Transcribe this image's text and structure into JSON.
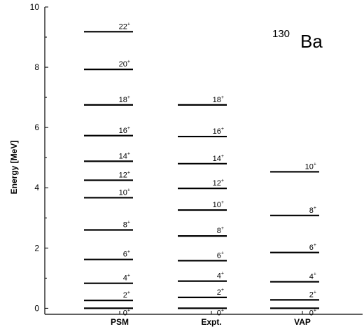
{
  "chart_data": {
    "type": "level-scheme",
    "ylabel": "Energy [MeV]",
    "ylim": [
      -0.2,
      10
    ],
    "yticks": [
      0,
      2,
      4,
      6,
      8,
      10
    ],
    "categories": [
      "PSM",
      "Expt.",
      "VAP"
    ],
    "nucleus": {
      "mass": "130",
      "symbol": "Ba"
    },
    "series": [
      {
        "name": "PSM",
        "levels": [
          {
            "spin": "0",
            "parity": "+",
            "energy": 0.0
          },
          {
            "spin": "2",
            "parity": "+",
            "energy": 0.26
          },
          {
            "spin": "4",
            "parity": "+",
            "energy": 0.83
          },
          {
            "spin": "6",
            "parity": "+",
            "energy": 1.62
          },
          {
            "spin": "8",
            "parity": "+",
            "energy": 2.6
          },
          {
            "spin": "10",
            "parity": "+",
            "energy": 3.67
          },
          {
            "spin": "12",
            "parity": "+",
            "energy": 4.25
          },
          {
            "spin": "14",
            "parity": "+",
            "energy": 4.88
          },
          {
            "spin": "16",
            "parity": "+",
            "energy": 5.73
          },
          {
            "spin": "18",
            "parity": "+",
            "energy": 6.75
          },
          {
            "spin": "20",
            "parity": "+",
            "energy": 7.93
          },
          {
            "spin": "22",
            "parity": "+",
            "energy": 9.18
          }
        ]
      },
      {
        "name": "Expt.",
        "levels": [
          {
            "spin": "0",
            "parity": "+",
            "energy": 0.0
          },
          {
            "spin": "2",
            "parity": "+",
            "energy": 0.36
          },
          {
            "spin": "4",
            "parity": "+",
            "energy": 0.9
          },
          {
            "spin": "6",
            "parity": "+",
            "energy": 1.58
          },
          {
            "spin": "8",
            "parity": "+",
            "energy": 2.4
          },
          {
            "spin": "10",
            "parity": "+",
            "energy": 3.26
          },
          {
            "spin": "12",
            "parity": "+",
            "energy": 3.98
          },
          {
            "spin": "14",
            "parity": "+",
            "energy": 4.8
          },
          {
            "spin": "16",
            "parity": "+",
            "energy": 5.7
          },
          {
            "spin": "18",
            "parity": "+",
            "energy": 6.75
          }
        ]
      },
      {
        "name": "VAP",
        "levels": [
          {
            "spin": "0",
            "parity": "+",
            "energy": 0.0
          },
          {
            "spin": "2",
            "parity": "+",
            "energy": 0.28
          },
          {
            "spin": "4",
            "parity": "+",
            "energy": 0.88
          },
          {
            "spin": "6",
            "parity": "+",
            "energy": 1.85
          },
          {
            "spin": "8",
            "parity": "+",
            "energy": 3.08
          },
          {
            "spin": "10",
            "parity": "+",
            "energy": 4.53
          }
        ]
      }
    ]
  }
}
